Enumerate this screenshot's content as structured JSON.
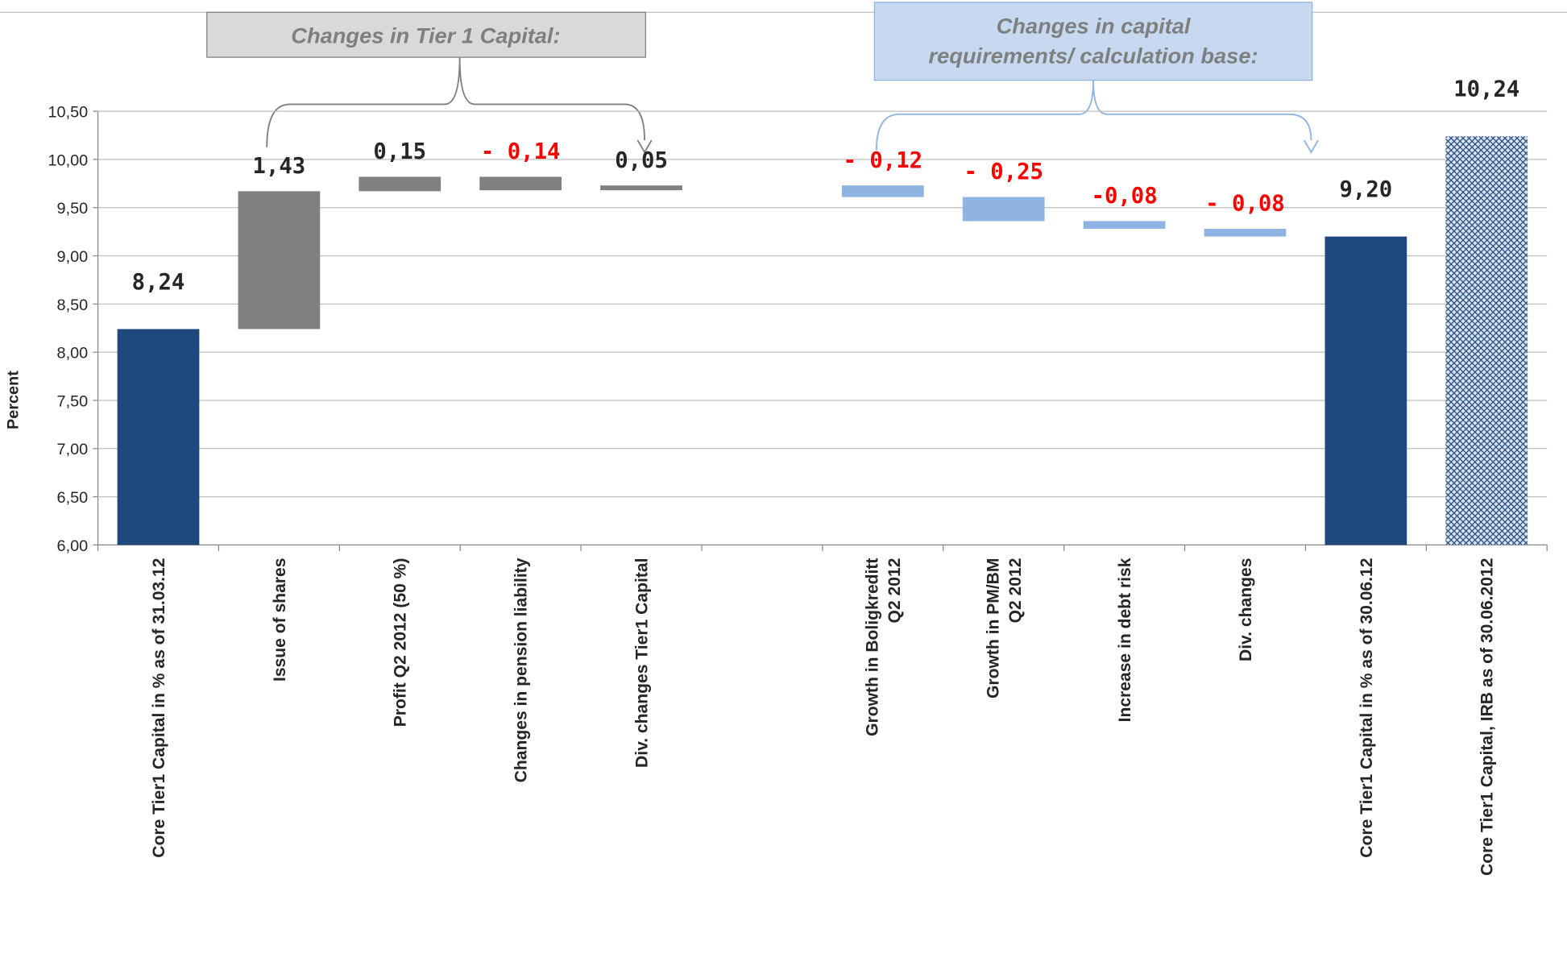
{
  "chart_data": {
    "type": "waterfall",
    "y_label": "Percent",
    "categories": [
      "Core Tier1 Capital in % as of 31.03.12",
      "Issue of shares",
      "Profit Q2 2012 (50 %)",
      "Changes in pension liability",
      "Div. changes Tier1 Capital",
      null,
      "Growth in Boligkreditt\nQ2 2012",
      "Growth in PM/BM\nQ2 2012",
      "Increase in debt risk",
      "Div. changes",
      "Core Tier1 Capital in % as of 30.06.12",
      "Core Tier1 Capital, IRB as of 30.06.2012"
    ],
    "values": [
      8.24,
      1.43,
      0.15,
      -0.14,
      0.05,
      null,
      -0.12,
      -0.25,
      -0.08,
      -0.08,
      9.2,
      10.24
    ],
    "value_labels": [
      "8,24",
      "1,43",
      "0,15",
      "- 0,14",
      "0,05",
      null,
      "- 0,12",
      "- 0,25",
      "-0,08",
      "- 0,08",
      "9,20",
      "10,24"
    ],
    "measures": [
      "total",
      "relative",
      "relative",
      "relative",
      "relative",
      null,
      "relative",
      "relative",
      "relative",
      "relative",
      "total",
      "total"
    ],
    "colors": [
      "#1f497d",
      "#808080",
      "#808080",
      "#808080",
      "#808080",
      null,
      "#8db4e2",
      "#8db4e2",
      "#8db4e2",
      "#8db4e2",
      "#1f497d",
      "#1f497d"
    ],
    "fill_patterns": [
      null,
      null,
      null,
      null,
      null,
      null,
      null,
      null,
      null,
      null,
      null,
      "crosshatch"
    ],
    "positive_label_color": "#262626",
    "negative_label_color": "#ff0000",
    "ylim": [
      6,
      10.5
    ],
    "yticks": [
      {
        "value": 6,
        "label": "6,00"
      },
      {
        "value": 6.5,
        "label": "6,50"
      },
      {
        "value": 7,
        "label": "7,00"
      },
      {
        "value": 7.5,
        "label": "7,50"
      },
      {
        "value": 8,
        "label": "8,00"
      },
      {
        "value": 8.5,
        "label": "8,50"
      },
      {
        "value": 9,
        "label": "9,00"
      },
      {
        "value": 9.5,
        "label": "9,50"
      },
      {
        "value": 10,
        "label": "10,00"
      },
      {
        "value": 10.5,
        "label": "10,50"
      }
    ],
    "grid": true,
    "annotations": [
      {
        "text": "Changes in Tier 1 Capital:"
      },
      {
        "text": "Changes  in capital\nrequirements/ calculation base:"
      }
    ]
  }
}
